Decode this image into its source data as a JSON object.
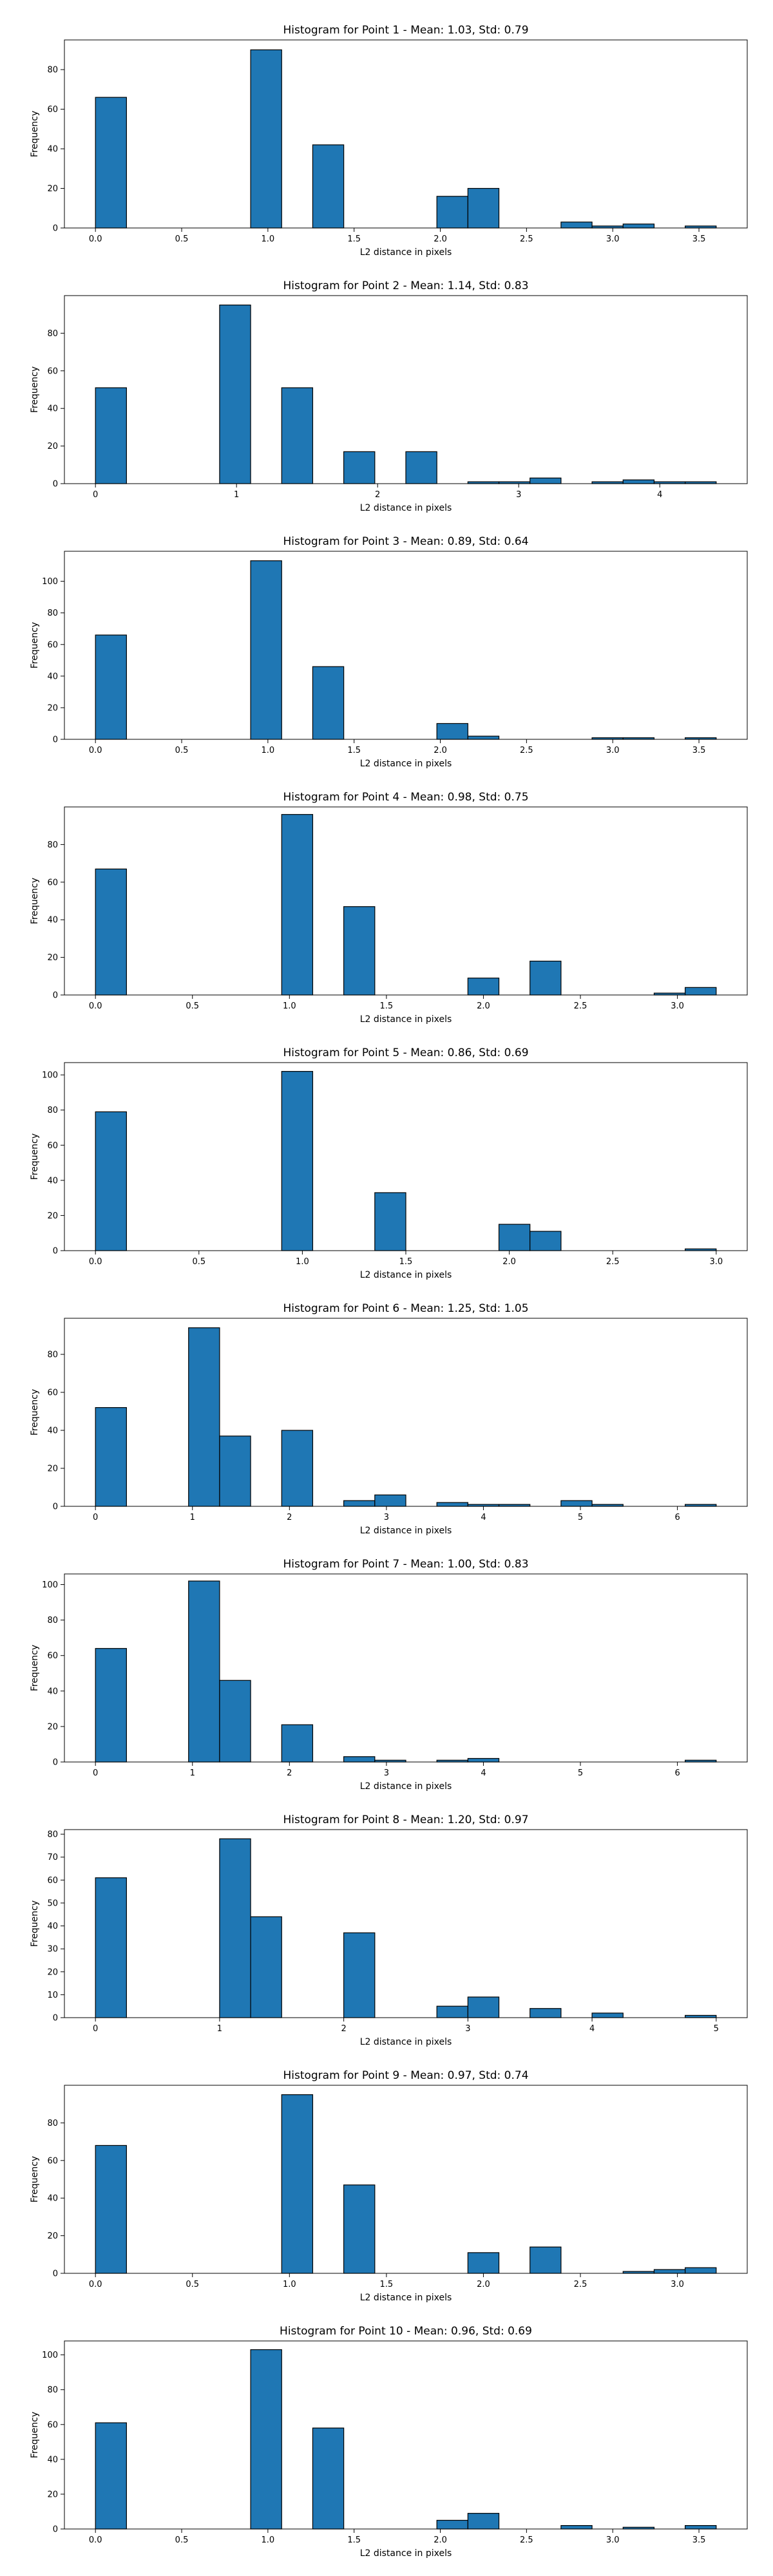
{
  "figure": {
    "background": "#ffffff",
    "bar_color": "#1f77b4",
    "edge_color": "#000000"
  },
  "chart_data": [
    {
      "type": "bar",
      "title": "Histogram for Point 1 - Mean: 1.03, Std: 0.79",
      "xlabel": "L2 distance in pixels",
      "ylabel": "Frequency",
      "xlim": [
        -0.18,
        3.78
      ],
      "ylim": [
        0,
        95
      ],
      "xticks": [
        0.0,
        0.5,
        1.0,
        1.5,
        2.0,
        2.5,
        3.0,
        3.5
      ],
      "xticklabels": [
        "0.0",
        "0.5",
        "1.0",
        "1.5",
        "2.0",
        "2.5",
        "3.0",
        "3.5"
      ],
      "yticks": [
        0,
        20,
        40,
        60,
        80
      ],
      "yticklabels": [
        "0",
        "20",
        "40",
        "60",
        "80"
      ],
      "bins": [
        [
          0.0,
          0.18,
          66
        ],
        [
          0.9,
          1.08,
          90
        ],
        [
          1.26,
          1.44,
          42
        ],
        [
          1.98,
          2.16,
          16
        ],
        [
          2.16,
          2.34,
          20
        ],
        [
          2.7,
          2.88,
          3
        ],
        [
          2.88,
          3.06,
          1
        ],
        [
          3.06,
          3.24,
          2
        ],
        [
          3.42,
          3.6,
          1
        ]
      ]
    },
    {
      "type": "bar",
      "title": "Histogram for Point 2 - Mean: 1.14, Std: 0.83",
      "xlabel": "L2 distance in pixels",
      "ylabel": "Frequency",
      "xlim": [
        -0.22,
        4.62
      ],
      "ylim": [
        0,
        100
      ],
      "xticks": [
        0,
        1,
        2,
        3,
        4
      ],
      "xticklabels": [
        "0",
        "1",
        "2",
        "3",
        "4"
      ],
      "yticks": [
        0,
        20,
        40,
        60,
        80
      ],
      "yticklabels": [
        "0",
        "20",
        "40",
        "60",
        "80"
      ],
      "bins": [
        [
          0.0,
          0.22,
          51
        ],
        [
          0.88,
          1.1,
          95
        ],
        [
          1.32,
          1.54,
          51
        ],
        [
          1.76,
          1.98,
          17
        ],
        [
          2.2,
          2.42,
          17
        ],
        [
          2.64,
          2.86,
          1
        ],
        [
          2.86,
          3.08,
          1
        ],
        [
          3.08,
          3.3,
          3
        ],
        [
          3.52,
          3.74,
          1
        ],
        [
          3.74,
          3.96,
          2
        ],
        [
          3.96,
          4.18,
          1
        ],
        [
          4.18,
          4.4,
          1
        ]
      ]
    },
    {
      "type": "bar",
      "title": "Histogram for Point 3 - Mean: 0.89, Std: 0.64",
      "xlabel": "L2 distance in pixels",
      "ylabel": "Frequency",
      "xlim": [
        -0.18,
        3.78
      ],
      "ylim": [
        0,
        119
      ],
      "xticks": [
        0.0,
        0.5,
        1.0,
        1.5,
        2.0,
        2.5,
        3.0,
        3.5
      ],
      "xticklabels": [
        "0.0",
        "0.5",
        "1.0",
        "1.5",
        "2.0",
        "2.5",
        "3.0",
        "3.5"
      ],
      "yticks": [
        0,
        20,
        40,
        60,
        80,
        100
      ],
      "yticklabels": [
        "0",
        "20",
        "40",
        "60",
        "80",
        "100"
      ],
      "bins": [
        [
          0.0,
          0.18,
          66
        ],
        [
          0.9,
          1.08,
          113
        ],
        [
          1.26,
          1.44,
          46
        ],
        [
          1.98,
          2.16,
          10
        ],
        [
          2.16,
          2.34,
          2
        ],
        [
          2.88,
          3.06,
          1
        ],
        [
          3.06,
          3.24,
          1
        ],
        [
          3.42,
          3.6,
          1
        ]
      ]
    },
    {
      "type": "bar",
      "title": "Histogram for Point 4 - Mean: 0.98, Std: 0.75",
      "xlabel": "L2 distance in pixels",
      "ylabel": "Frequency",
      "xlim": [
        -0.16,
        3.36
      ],
      "ylim": [
        0,
        100
      ],
      "xticks": [
        0.0,
        0.5,
        1.0,
        1.5,
        2.0,
        2.5,
        3.0
      ],
      "xticklabels": [
        "0.0",
        "0.5",
        "1.0",
        "1.5",
        "2.0",
        "2.5",
        "3.0"
      ],
      "yticks": [
        0,
        20,
        40,
        60,
        80
      ],
      "yticklabels": [
        "0",
        "20",
        "40",
        "60",
        "80"
      ],
      "bins": [
        [
          0.0,
          0.16,
          67
        ],
        [
          0.96,
          1.12,
          96
        ],
        [
          1.28,
          1.44,
          47
        ],
        [
          1.92,
          2.08,
          9
        ],
        [
          2.24,
          2.4,
          18
        ],
        [
          2.88,
          3.04,
          1
        ],
        [
          3.04,
          3.2,
          4
        ]
      ]
    },
    {
      "type": "bar",
      "title": "Histogram for Point 5 - Mean: 0.86, Std: 0.69",
      "xlabel": "L2 distance in pixels",
      "ylabel": "Frequency",
      "xlim": [
        -0.15,
        3.15
      ],
      "ylim": [
        0,
        107
      ],
      "xticks": [
        0.0,
        0.5,
        1.0,
        1.5,
        2.0,
        2.5,
        3.0
      ],
      "xticklabels": [
        "0.0",
        "0.5",
        "1.0",
        "1.5",
        "2.0",
        "2.5",
        "3.0"
      ],
      "yticks": [
        0,
        20,
        40,
        60,
        80,
        100
      ],
      "yticklabels": [
        "0",
        "20",
        "40",
        "60",
        "80",
        "100"
      ],
      "bins": [
        [
          0.0,
          0.15,
          79
        ],
        [
          0.9,
          1.05,
          102
        ],
        [
          1.35,
          1.5,
          33
        ],
        [
          1.95,
          2.1,
          15
        ],
        [
          2.1,
          2.25,
          11
        ],
        [
          2.85,
          3.0,
          1
        ]
      ]
    },
    {
      "type": "bar",
      "title": "Histogram for Point 6 - Mean: 1.25, Std: 1.05",
      "xlabel": "L2 distance in pixels",
      "ylabel": "Frequency",
      "xlim": [
        -0.32,
        6.72
      ],
      "ylim": [
        0,
        99
      ],
      "xticks": [
        0,
        1,
        2,
        3,
        4,
        5,
        6
      ],
      "xticklabels": [
        "0",
        "1",
        "2",
        "3",
        "4",
        "5",
        "6"
      ],
      "yticks": [
        0,
        20,
        40,
        60,
        80
      ],
      "yticklabels": [
        "0",
        "20",
        "40",
        "60",
        "80"
      ],
      "bins": [
        [
          0.0,
          0.32,
          52
        ],
        [
          0.96,
          1.28,
          94
        ],
        [
          1.28,
          1.6,
          37
        ],
        [
          1.92,
          2.24,
          40
        ],
        [
          2.56,
          2.88,
          3
        ],
        [
          2.88,
          3.2,
          6
        ],
        [
          3.52,
          3.84,
          2
        ],
        [
          3.84,
          4.16,
          1
        ],
        [
          4.16,
          4.48,
          1
        ],
        [
          4.8,
          5.12,
          3
        ],
        [
          5.12,
          5.44,
          1
        ],
        [
          6.08,
          6.4,
          1
        ]
      ]
    },
    {
      "type": "bar",
      "title": "Histogram for Point 7 - Mean: 1.00, Std: 0.83",
      "xlabel": "L2 distance in pixels",
      "ylabel": "Frequency",
      "xlim": [
        -0.32,
        6.72
      ],
      "ylim": [
        0,
        106
      ],
      "xticks": [
        0,
        1,
        2,
        3,
        4,
        5,
        6
      ],
      "xticklabels": [
        "0",
        "1",
        "2",
        "3",
        "4",
        "5",
        "6"
      ],
      "yticks": [
        0,
        20,
        40,
        60,
        80,
        100
      ],
      "yticklabels": [
        "0",
        "20",
        "40",
        "60",
        "80",
        "100"
      ],
      "bins": [
        [
          0.0,
          0.32,
          64
        ],
        [
          0.96,
          1.28,
          102
        ],
        [
          1.28,
          1.6,
          46
        ],
        [
          1.92,
          2.24,
          21
        ],
        [
          2.56,
          2.88,
          3
        ],
        [
          2.88,
          3.2,
          1
        ],
        [
          3.52,
          3.84,
          1
        ],
        [
          3.84,
          4.16,
          2
        ],
        [
          6.08,
          6.4,
          1
        ]
      ]
    },
    {
      "type": "bar",
      "title": "Histogram for Point 8 - Mean: 1.20, Std: 0.97",
      "xlabel": "L2 distance in pixels",
      "ylabel": "Frequency",
      "xlim": [
        -0.25,
        5.25
      ],
      "ylim": [
        0,
        82
      ],
      "xticks": [
        0,
        1,
        2,
        3,
        4,
        5
      ],
      "xticklabels": [
        "0",
        "1",
        "2",
        "3",
        "4",
        "5"
      ],
      "yticks": [
        0,
        10,
        20,
        30,
        40,
        50,
        60,
        70,
        80
      ],
      "yticklabels": [
        "0",
        "10",
        "20",
        "30",
        "40",
        "50",
        "60",
        "70",
        "80"
      ],
      "bins": [
        [
          0.0,
          0.25,
          61
        ],
        [
          1.0,
          1.25,
          78
        ],
        [
          1.25,
          1.5,
          44
        ],
        [
          2.0,
          2.25,
          37
        ],
        [
          2.75,
          3.0,
          5
        ],
        [
          3.0,
          3.25,
          9
        ],
        [
          3.5,
          3.75,
          4
        ],
        [
          4.0,
          4.25,
          2
        ],
        [
          4.75,
          5.0,
          1
        ]
      ]
    },
    {
      "type": "bar",
      "title": "Histogram for Point 9 - Mean: 0.97, Std: 0.74",
      "xlabel": "L2 distance in pixels",
      "ylabel": "Frequency",
      "xlim": [
        -0.16,
        3.36
      ],
      "ylim": [
        0,
        100
      ],
      "xticks": [
        0.0,
        0.5,
        1.0,
        1.5,
        2.0,
        2.5,
        3.0
      ],
      "xticklabels": [
        "0.0",
        "0.5",
        "1.0",
        "1.5",
        "2.0",
        "2.5",
        "3.0"
      ],
      "yticks": [
        0,
        20,
        40,
        60,
        80
      ],
      "yticklabels": [
        "0",
        "20",
        "40",
        "60",
        "80"
      ],
      "bins": [
        [
          0.0,
          0.16,
          68
        ],
        [
          0.96,
          1.12,
          95
        ],
        [
          1.28,
          1.44,
          47
        ],
        [
          1.92,
          2.08,
          11
        ],
        [
          2.24,
          2.4,
          14
        ],
        [
          2.72,
          2.88,
          1
        ],
        [
          2.88,
          3.04,
          2
        ],
        [
          3.04,
          3.2,
          3
        ]
      ]
    },
    {
      "type": "bar",
      "title": "Histogram for Point 10 - Mean: 0.96, Std: 0.69",
      "xlabel": "L2 distance in pixels",
      "ylabel": "Frequency",
      "xlim": [
        -0.18,
        3.78
      ],
      "ylim": [
        0,
        108
      ],
      "xticks": [
        0.0,
        0.5,
        1.0,
        1.5,
        2.0,
        2.5,
        3.0,
        3.5
      ],
      "xticklabels": [
        "0.0",
        "0.5",
        "1.0",
        "1.5",
        "2.0",
        "2.5",
        "3.0",
        "3.5"
      ],
      "yticks": [
        0,
        20,
        40,
        60,
        80,
        100
      ],
      "yticklabels": [
        "0",
        "20",
        "40",
        "60",
        "80",
        "100"
      ],
      "bins": [
        [
          0.0,
          0.18,
          61
        ],
        [
          0.9,
          1.08,
          103
        ],
        [
          1.26,
          1.44,
          58
        ],
        [
          1.98,
          2.16,
          5
        ],
        [
          2.16,
          2.34,
          9
        ],
        [
          2.7,
          2.88,
          2
        ],
        [
          3.06,
          3.24,
          1
        ],
        [
          3.42,
          3.6,
          2
        ]
      ]
    }
  ]
}
